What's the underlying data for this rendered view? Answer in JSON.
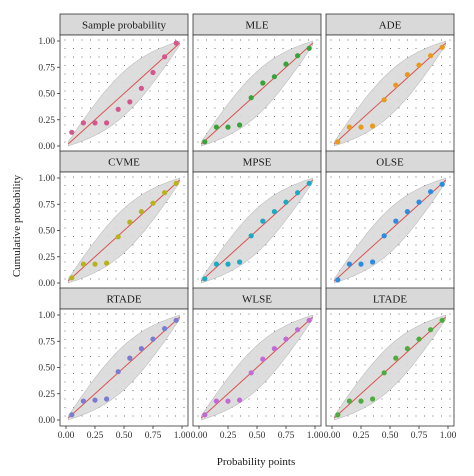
{
  "figure": {
    "xlabel": "Probability points",
    "ylabel": "Cumulative probability"
  },
  "colors": {
    "band": "#d9d9d9",
    "band_stroke": "#bdbdbd",
    "line": "#d9534f",
    "strip": "#d9d9d9",
    "panel_border": "#333333",
    "dots": "#555555",
    "points": [
      "#d5568c",
      "#39a33a",
      "#e79a1f",
      "#b8b21f",
      "#1ea8c4",
      "#2d8be0",
      "#7b7bd1",
      "#c26ad6",
      "#4fab3f"
    ]
  },
  "chart_data": [
    {
      "type": "scatter",
      "title": "Sample probability",
      "x": [
        0.05,
        0.15,
        0.25,
        0.35,
        0.45,
        0.55,
        0.65,
        0.75,
        0.85,
        0.95
      ],
      "y": [
        0.13,
        0.22,
        0.22,
        0.22,
        0.35,
        0.42,
        0.55,
        0.7,
        0.85,
        0.98
      ],
      "xlim": [
        0,
        1
      ],
      "ylim": [
        0,
        1
      ],
      "xticks": [
        "0.00",
        "0.25",
        "0.50",
        "0.75",
        "1.00"
      ],
      "yticks": [
        "0.00",
        "0.25",
        "0.50",
        "0.75",
        "1.00"
      ]
    },
    {
      "type": "scatter",
      "title": "MLE",
      "x": [
        0.05,
        0.15,
        0.25,
        0.35,
        0.45,
        0.55,
        0.65,
        0.75,
        0.85,
        0.95
      ],
      "y": [
        0.04,
        0.18,
        0.18,
        0.2,
        0.46,
        0.6,
        0.66,
        0.78,
        0.86,
        0.93
      ],
      "xlim": [
        0,
        1
      ],
      "ylim": [
        0,
        1
      ],
      "xticks": [
        "0.00",
        "0.25",
        "0.50",
        "0.75",
        "1.00"
      ],
      "yticks": [
        "0.00",
        "0.25",
        "0.50",
        "0.75",
        "1.00"
      ]
    },
    {
      "type": "scatter",
      "title": "ADE",
      "x": [
        0.05,
        0.15,
        0.25,
        0.35,
        0.45,
        0.55,
        0.65,
        0.75,
        0.85,
        0.95
      ],
      "y": [
        0.04,
        0.18,
        0.18,
        0.19,
        0.44,
        0.58,
        0.68,
        0.77,
        0.86,
        0.94
      ],
      "xlim": [
        0,
        1
      ],
      "ylim": [
        0,
        1
      ],
      "xticks": [
        "0.00",
        "0.25",
        "0.50",
        "0.75",
        "1.00"
      ],
      "yticks": [
        "0.00",
        "0.25",
        "0.50",
        "0.75",
        "1.00"
      ]
    },
    {
      "type": "scatter",
      "title": "CVME",
      "x": [
        0.05,
        0.15,
        0.25,
        0.35,
        0.45,
        0.55,
        0.65,
        0.75,
        0.85,
        0.95
      ],
      "y": [
        0.05,
        0.18,
        0.18,
        0.19,
        0.44,
        0.58,
        0.68,
        0.76,
        0.86,
        0.95
      ],
      "xlim": [
        0,
        1
      ],
      "ylim": [
        0,
        1
      ],
      "xticks": [
        "0.00",
        "0.25",
        "0.50",
        "0.75",
        "1.00"
      ],
      "yticks": [
        "0.00",
        "0.25",
        "0.50",
        "0.75",
        "1.00"
      ]
    },
    {
      "type": "scatter",
      "title": "MPSE",
      "x": [
        0.05,
        0.15,
        0.25,
        0.35,
        0.45,
        0.55,
        0.65,
        0.75,
        0.85,
        0.95
      ],
      "y": [
        0.04,
        0.18,
        0.18,
        0.2,
        0.45,
        0.59,
        0.68,
        0.77,
        0.86,
        0.95
      ],
      "xlim": [
        0,
        1
      ],
      "ylim": [
        0,
        1
      ],
      "xticks": [
        "0.00",
        "0.25",
        "0.50",
        "0.75",
        "1.00"
      ],
      "yticks": [
        "0.00",
        "0.25",
        "0.50",
        "0.75",
        "1.00"
      ]
    },
    {
      "type": "scatter",
      "title": "OLSE",
      "x": [
        0.05,
        0.15,
        0.25,
        0.35,
        0.45,
        0.55,
        0.65,
        0.75,
        0.85,
        0.95
      ],
      "y": [
        0.03,
        0.18,
        0.18,
        0.2,
        0.45,
        0.59,
        0.68,
        0.77,
        0.87,
        0.94
      ],
      "xlim": [
        0,
        1
      ],
      "ylim": [
        0,
        1
      ],
      "xticks": [
        "0.00",
        "0.25",
        "0.50",
        "0.75",
        "1.00"
      ],
      "yticks": [
        "0.00",
        "0.25",
        "0.50",
        "0.75",
        "1.00"
      ]
    },
    {
      "type": "scatter",
      "title": "RTADE",
      "x": [
        0.05,
        0.15,
        0.25,
        0.35,
        0.45,
        0.55,
        0.65,
        0.75,
        0.85,
        0.95
      ],
      "y": [
        0.05,
        0.18,
        0.19,
        0.2,
        0.46,
        0.59,
        0.68,
        0.77,
        0.87,
        0.95
      ],
      "xlim": [
        0,
        1
      ],
      "ylim": [
        0,
        1
      ],
      "xticks": [
        "0.00",
        "0.25",
        "0.50",
        "0.75",
        "1.00"
      ],
      "yticks": [
        "0.00",
        "0.25",
        "0.50",
        "0.75",
        "1.00"
      ]
    },
    {
      "type": "scatter",
      "title": "WLSE",
      "x": [
        0.05,
        0.15,
        0.25,
        0.35,
        0.45,
        0.55,
        0.65,
        0.75,
        0.85,
        0.95
      ],
      "y": [
        0.05,
        0.18,
        0.18,
        0.19,
        0.45,
        0.58,
        0.68,
        0.77,
        0.86,
        0.95
      ],
      "xlim": [
        0,
        1
      ],
      "ylim": [
        0,
        1
      ],
      "xticks": [
        "0.00",
        "0.25",
        "0.50",
        "0.75",
        "1.00"
      ],
      "yticks": [
        "0.00",
        "0.25",
        "0.50",
        "0.75",
        "1.00"
      ]
    },
    {
      "type": "scatter",
      "title": "LTADE",
      "x": [
        0.05,
        0.15,
        0.25,
        0.35,
        0.45,
        0.55,
        0.65,
        0.75,
        0.85,
        0.95
      ],
      "y": [
        0.05,
        0.18,
        0.18,
        0.2,
        0.45,
        0.59,
        0.68,
        0.77,
        0.86,
        0.95
      ],
      "xlim": [
        0,
        1
      ],
      "ylim": [
        0,
        1
      ],
      "xticks": [
        "0.00",
        "0.25",
        "0.50",
        "0.75",
        "1.00"
      ],
      "yticks": [
        "0.00",
        "0.25",
        "0.50",
        "0.75",
        "1.00"
      ]
    }
  ]
}
